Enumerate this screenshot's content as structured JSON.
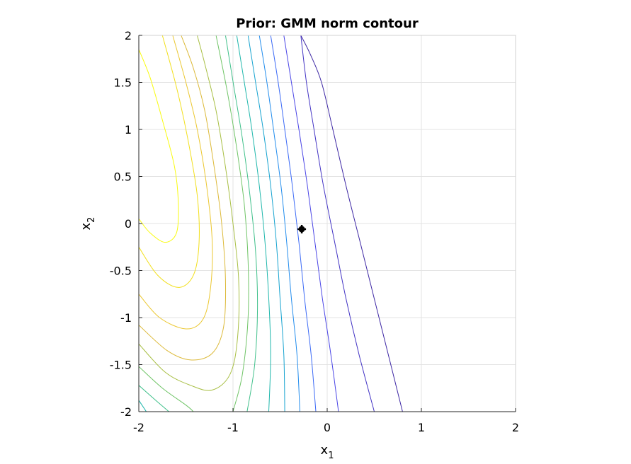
{
  "chart_data": {
    "type": "contour",
    "title": "Prior: GMM norm contour",
    "xlabel": {
      "base": "x",
      "sub": "1"
    },
    "ylabel": {
      "base": "x",
      "sub": "2"
    },
    "xlim": [
      -2,
      2
    ],
    "ylim": [
      -2,
      2
    ],
    "xticks": [
      -2,
      -1,
      0,
      1,
      2
    ],
    "yticks": [
      -2,
      -1.5,
      -1,
      -0.5,
      0,
      0.5,
      1,
      1.5,
      2
    ],
    "xtick_labels": [
      "-2",
      "-1",
      "0",
      "1",
      "2"
    ],
    "ytick_labels": [
      "-2",
      "-1.5",
      "-1",
      "-0.5",
      "0",
      "0.5",
      "1",
      "1.5",
      "2"
    ],
    "grid": true,
    "colormap": [
      "#3e26a8",
      "#4743e8",
      "#2f80f3",
      "#1e9ed9",
      "#12b5b0",
      "#36c087",
      "#86c158",
      "#c7b72e",
      "#f2bf2b",
      "#f9dd1b",
      "#f9fb0e"
    ],
    "marker": {
      "x": -0.27,
      "y": -0.06,
      "color": "#000000"
    },
    "contour_lines": [
      {
        "level_index": 0,
        "color": "#f9fb0e",
        "points": [
          [
            -2.0,
            0.05
          ],
          [
            -1.88,
            -0.1
          ],
          [
            -1.72,
            -0.2
          ],
          [
            -1.6,
            -0.1
          ],
          [
            -1.58,
            0.2
          ],
          [
            -1.62,
            0.6
          ],
          [
            -1.75,
            1.1
          ],
          [
            -1.88,
            1.55
          ],
          [
            -2.0,
            1.85
          ]
        ]
      },
      {
        "level_index": 1,
        "color": "#f2df1b",
        "points": [
          [
            -2.0,
            -0.25
          ],
          [
            -1.8,
            -0.55
          ],
          [
            -1.58,
            -0.68
          ],
          [
            -1.42,
            -0.55
          ],
          [
            -1.36,
            -0.2
          ],
          [
            -1.38,
            0.3
          ],
          [
            -1.48,
            0.9
          ],
          [
            -1.6,
            1.45
          ],
          [
            -1.75,
            2.0
          ]
        ]
      },
      {
        "level_index": 2,
        "color": "#ebc730",
        "points": [
          [
            -2.0,
            -0.75
          ],
          [
            -1.78,
            -1.0
          ],
          [
            -1.5,
            -1.12
          ],
          [
            -1.32,
            -1.02
          ],
          [
            -1.24,
            -0.7
          ],
          [
            -1.22,
            -0.2
          ],
          [
            -1.28,
            0.4
          ],
          [
            -1.38,
            1.0
          ],
          [
            -1.5,
            1.5
          ],
          [
            -1.64,
            2.0
          ]
        ]
      },
      {
        "level_index": 3,
        "color": "#dcb938",
        "points": [
          [
            -2.0,
            -1.08
          ],
          [
            -1.7,
            -1.35
          ],
          [
            -1.45,
            -1.45
          ],
          [
            -1.22,
            -1.38
          ],
          [
            -1.1,
            -1.1
          ],
          [
            -1.08,
            -0.6
          ],
          [
            -1.12,
            0.0
          ],
          [
            -1.2,
            0.6
          ],
          [
            -1.3,
            1.2
          ],
          [
            -1.42,
            1.65
          ],
          [
            -1.55,
            2.0
          ]
        ]
      },
      {
        "level_index": 4,
        "color": "#a8bf44",
        "points": [
          [
            -2.0,
            -1.28
          ],
          [
            -1.72,
            -1.58
          ],
          [
            -1.45,
            -1.72
          ],
          [
            -1.22,
            -1.77
          ],
          [
            -1.03,
            -1.6
          ],
          [
            -0.95,
            -1.2
          ],
          [
            -0.94,
            -0.6
          ],
          [
            -1.0,
            0.0
          ],
          [
            -1.08,
            0.6
          ],
          [
            -1.18,
            1.2
          ],
          [
            -1.3,
            1.7
          ],
          [
            -1.38,
            2.0
          ]
        ]
      },
      {
        "level_index": 5,
        "color": "#6fc466",
        "points": [
          [
            -2.0,
            -1.52
          ],
          [
            -1.75,
            -1.75
          ],
          [
            -1.5,
            -1.93
          ],
          [
            -1.42,
            -2.0
          ]
        ]
      },
      {
        "level_index": 5,
        "color": "#6fc466",
        "points": [
          [
            -1.0,
            -2.0
          ],
          [
            -0.9,
            -1.6
          ],
          [
            -0.84,
            -1.0
          ],
          [
            -0.84,
            -0.4
          ],
          [
            -0.88,
            0.2
          ],
          [
            -0.96,
            0.8
          ],
          [
            -1.06,
            1.4
          ],
          [
            -1.18,
            2.0
          ]
        ]
      },
      {
        "level_index": 6,
        "color": "#3fc08a",
        "points": [
          [
            -2.0,
            -1.72
          ],
          [
            -1.82,
            -1.88
          ],
          [
            -1.68,
            -2.0
          ]
        ]
      },
      {
        "level_index": 6,
        "color": "#3fc08a",
        "points": [
          [
            -0.85,
            -2.0
          ],
          [
            -0.77,
            -1.5
          ],
          [
            -0.74,
            -0.9
          ],
          [
            -0.76,
            -0.3
          ],
          [
            -0.82,
            0.3
          ],
          [
            -0.9,
            0.9
          ],
          [
            -0.99,
            1.45
          ],
          [
            -1.08,
            2.0
          ]
        ]
      },
      {
        "level_index": 7,
        "color": "#1fb7ac",
        "points": [
          [
            -2.0,
            -1.88
          ],
          [
            -1.92,
            -2.0
          ]
        ]
      },
      {
        "level_index": 7,
        "color": "#1fb7ac",
        "points": [
          [
            -0.62,
            -2.0
          ],
          [
            -0.6,
            -1.4
          ],
          [
            -0.62,
            -0.8
          ],
          [
            -0.66,
            -0.2
          ],
          [
            -0.72,
            0.4
          ],
          [
            -0.8,
            1.0
          ],
          [
            -0.88,
            1.5
          ],
          [
            -0.96,
            2.0
          ]
        ]
      },
      {
        "level_index": 8,
        "color": "#16a3d0",
        "points": [
          [
            -0.45,
            -2.0
          ],
          [
            -0.46,
            -1.4
          ],
          [
            -0.5,
            -0.8
          ],
          [
            -0.54,
            -0.2
          ],
          [
            -0.6,
            0.4
          ],
          [
            -0.68,
            1.0
          ],
          [
            -0.76,
            1.5
          ],
          [
            -0.84,
            2.0
          ]
        ]
      },
      {
        "level_index": 9,
        "color": "#238ded",
        "points": [
          [
            -0.29,
            -2.0
          ],
          [
            -0.32,
            -1.4
          ],
          [
            -0.38,
            -0.8
          ],
          [
            -0.43,
            -0.2
          ],
          [
            -0.49,
            0.4
          ],
          [
            -0.57,
            1.0
          ],
          [
            -0.64,
            1.5
          ],
          [
            -0.72,
            2.0
          ]
        ]
      },
      {
        "level_index": 10,
        "color": "#3c6af6",
        "points": [
          [
            -0.12,
            -2.0
          ],
          [
            -0.17,
            -1.4
          ],
          [
            -0.24,
            -0.8
          ],
          [
            -0.3,
            -0.2
          ],
          [
            -0.37,
            0.4
          ],
          [
            -0.45,
            1.0
          ],
          [
            -0.52,
            1.5
          ],
          [
            -0.6,
            2.0
          ]
        ]
      },
      {
        "level_index": 11,
        "color": "#4a45e6",
        "points": [
          [
            0.12,
            -2.0
          ],
          [
            0.04,
            -1.4
          ],
          [
            -0.05,
            -0.8
          ],
          [
            -0.13,
            -0.2
          ],
          [
            -0.21,
            0.4
          ],
          [
            -0.3,
            1.0
          ],
          [
            -0.38,
            1.5
          ],
          [
            -0.46,
            2.0
          ]
        ]
      },
      {
        "level_index": 12,
        "color": "#4233c4",
        "points": [
          [
            0.5,
            -2.0
          ],
          [
            0.34,
            -1.4
          ],
          [
            0.2,
            -0.8
          ],
          [
            0.08,
            -0.2
          ],
          [
            -0.04,
            0.4
          ],
          [
            -0.14,
            1.0
          ],
          [
            -0.22,
            1.5
          ],
          [
            -0.28,
            2.0
          ]
        ]
      },
      {
        "level_index": 13,
        "color": "#3d27a4",
        "points": [
          [
            0.8,
            -2.0
          ],
          [
            0.65,
            -1.4
          ],
          [
            0.5,
            -0.8
          ],
          [
            0.35,
            -0.2
          ],
          [
            0.2,
            0.4
          ],
          [
            0.06,
            1.0
          ],
          [
            -0.06,
            1.5
          ],
          [
            -0.18,
            1.8
          ],
          [
            -0.28,
            2.0
          ]
        ]
      }
    ]
  }
}
